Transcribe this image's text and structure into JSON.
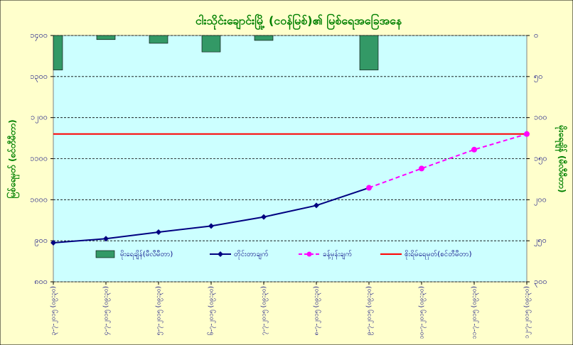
{
  "chart_data": {
    "type": "combo",
    "title": "ငါးသိုင်းချောင်းမြို့ (ငဝန်မြစ်)၏ မြစ်ရေအခြေအနေ",
    "y_label": "မြစ်ရေမှတ် (စင်တီမီတာ)",
    "y2_label": "မိုးရေချိန် (မီလီမီတာ)",
    "categories": [
      "၃-၇-၂၀၁၅ (၀၉:၃၀)",
      "၄-၇-၂၀၁၅ (၀၉:၃၀)",
      "၅-၇-၂၀၁၅ (၀၉:၃၀)",
      "၆-၇-၂၀၁၅ (၀၉:၃၀)",
      "၇-၇-၂၀၁၅ (၀၉:၃၀)",
      "၈-၇-၂၀၁၅ (၀၉:၃၀)",
      "၉-၇-၂၀၁၅ (၀၉:၃၀)",
      "၁၀-၇-၂၀၁၅ (၀၉:၃၀)",
      "၁၁-၇-၂၀၁၅ (၀၉:၃၀)",
      "၁၂-၇-၂၀၁၅ (၀၉:၃၀)"
    ],
    "ylim": [
      800,
      1400
    ],
    "yticks": [
      {
        "value": 800,
        "label": "၈၀၀"
      },
      {
        "value": 900,
        "label": "၉၀၀"
      },
      {
        "value": 1000,
        "label": "၁၀၀၀"
      },
      {
        "value": 1100,
        "label": "၁၁၀၀"
      },
      {
        "value": 1200,
        "label": "၁၂၀၀"
      },
      {
        "value": 1300,
        "label": "၁၃၀၀"
      },
      {
        "value": 1400,
        "label": "၁၄၀၀"
      }
    ],
    "y2lim": [
      0,
      300
    ],
    "y2_inverted": true,
    "y2ticks": [
      {
        "value": 0,
        "label": "၀"
      },
      {
        "value": 50,
        "label": "၅၀"
      },
      {
        "value": 100,
        "label": "၁၀၀"
      },
      {
        "value": 150,
        "label": "၁၅၀"
      },
      {
        "value": 200,
        "label": "၂၀၀"
      },
      {
        "value": 250,
        "label": "၂၅၀"
      },
      {
        "value": 300,
        "label": "၃၀၀"
      }
    ],
    "grid": true,
    "series": [
      {
        "name": "မိုးရေချိန်(မီလီမီတာ)",
        "kind": "bar",
        "axis": "y2",
        "color": "#339966",
        "values": [
          42,
          5,
          9.5,
          20,
          6,
          null,
          42,
          null,
          null,
          null
        ]
      },
      {
        "name": "တိုင်းတာချက်",
        "kind": "line",
        "color": "#000080",
        "values": [
          895,
          905,
          921,
          936,
          958,
          986,
          1029,
          null,
          null,
          null
        ]
      },
      {
        "name": "ခန့်မှန်းချက်",
        "kind": "dashed",
        "color": "#ff00ff",
        "values": [
          null,
          null,
          null,
          null,
          null,
          null,
          1029,
          1076,
          1122,
          1160
        ]
      }
    ],
    "reference_line": {
      "name": "စိုးရိမ်ရေမှတ်(စင်တီမီတာ)",
      "value": 1160,
      "color": "#ff0000"
    }
  }
}
